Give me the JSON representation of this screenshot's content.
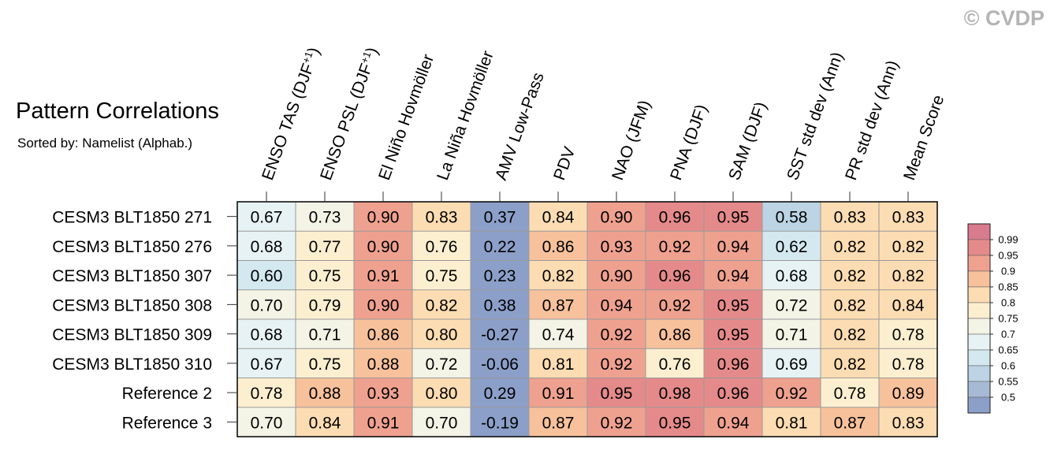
{
  "watermark": "© CVDP",
  "title": "Pattern Correlations",
  "subtitle": "Sorted by: Namelist (Alphab.)",
  "chart_data": {
    "type": "heatmap",
    "title": "Pattern Correlations",
    "subtitle": "Sorted by: Namelist (Alphab.)",
    "columns": [
      {
        "base": "ENSO TAS (DJF",
        "sup": "+1",
        "tail": ")"
      },
      {
        "base": "ENSO PSL (DJF",
        "sup": "+1",
        "tail": ")"
      },
      {
        "base": "El Niño Hovmöller",
        "sup": "",
        "tail": ""
      },
      {
        "base": "La Niña Hovmöller",
        "sup": "",
        "tail": ""
      },
      {
        "base": "AMV Low-Pass",
        "sup": "",
        "tail": ""
      },
      {
        "base": "PDV",
        "sup": "",
        "tail": ""
      },
      {
        "base": "NAO (JFM)",
        "sup": "",
        "tail": ""
      },
      {
        "base": "PNA (DJF)",
        "sup": "",
        "tail": ""
      },
      {
        "base": "SAM (DJF)",
        "sup": "",
        "tail": ""
      },
      {
        "base": "SST std dev (Ann)",
        "sup": "",
        "tail": ""
      },
      {
        "base": "PR std dev (Ann)",
        "sup": "",
        "tail": ""
      },
      {
        "base": "Mean Score",
        "sup": "",
        "tail": ""
      }
    ],
    "rows": [
      "CESM3 BLT1850 271",
      "CESM3 BLT1850 276",
      "CESM3 BLT1850 307",
      "CESM3 BLT1850 308",
      "CESM3 BLT1850 309",
      "CESM3 BLT1850 310",
      "Reference 2",
      "Reference 3"
    ],
    "values": [
      [
        "0.67",
        "0.73",
        "0.90",
        "0.83",
        "0.37",
        "0.84",
        "0.90",
        "0.96",
        "0.95",
        "0.58",
        "0.83",
        "0.83"
      ],
      [
        "0.68",
        "0.77",
        "0.90",
        "0.76",
        "0.22",
        "0.86",
        "0.93",
        "0.92",
        "0.94",
        "0.62",
        "0.82",
        "0.82"
      ],
      [
        "0.60",
        "0.75",
        "0.91",
        "0.75",
        "0.23",
        "0.82",
        "0.90",
        "0.96",
        "0.94",
        "0.68",
        "0.82",
        "0.82"
      ],
      [
        "0.70",
        "0.79",
        "0.90",
        "0.82",
        "0.38",
        "0.87",
        "0.94",
        "0.92",
        "0.95",
        "0.72",
        "0.82",
        "0.84"
      ],
      [
        "0.68",
        "0.71",
        "0.86",
        "0.80",
        "-0.27",
        "0.74",
        "0.92",
        "0.86",
        "0.95",
        "0.71",
        "0.82",
        "0.78"
      ],
      [
        "0.67",
        "0.75",
        "0.88",
        "0.72",
        "-0.06",
        "0.81",
        "0.92",
        "0.76",
        "0.96",
        "0.69",
        "0.82",
        "0.78"
      ],
      [
        "0.78",
        "0.88",
        "0.93",
        "0.80",
        "0.29",
        "0.91",
        "0.95",
        "0.98",
        "0.96",
        "0.92",
        "0.78",
        "0.89"
      ],
      [
        "0.70",
        "0.84",
        "0.91",
        "0.70",
        "-0.19",
        "0.87",
        "0.92",
        "0.95",
        "0.94",
        "0.81",
        "0.87",
        "0.83"
      ]
    ],
    "colorbar": {
      "labels": [
        "0.99",
        "0.95",
        "0.9",
        "0.85",
        "0.8",
        "0.75",
        "0.7",
        "0.65",
        "0.6",
        "0.55",
        "0.5"
      ],
      "thresholds": [
        0.5,
        0.55,
        0.6,
        0.65,
        0.7,
        0.75,
        0.8,
        0.85,
        0.9,
        0.95,
        0.99
      ],
      "colors": [
        "#8c9fc9",
        "#a6bad6",
        "#bcd4e4",
        "#d3e8ef",
        "#e6f2f3",
        "#f3f3e6",
        "#fcefd0",
        "#fcdcb2",
        "#f7c19c",
        "#efa18f",
        "#e58a8a",
        "#d87b8c"
      ]
    }
  }
}
